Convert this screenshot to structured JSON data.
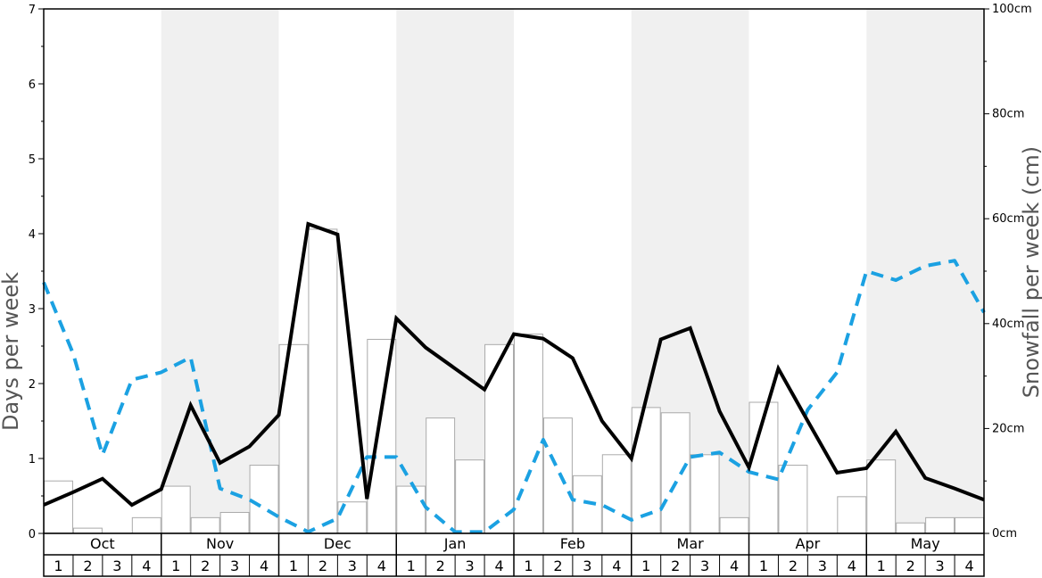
{
  "chart_data": {
    "type": "bar",
    "title": "",
    "y_left": {
      "label": "Days per week",
      "range": [
        0,
        7
      ],
      "ticks": [
        "0",
        "1",
        "2",
        "3",
        "4",
        "5",
        "6",
        "7"
      ]
    },
    "y_right": {
      "label": "Snowfall per week (cm)",
      "range": [
        0,
        100
      ],
      "ticks": [
        "0cm",
        "20cm",
        "40cm",
        "60cm",
        "80cm",
        "100cm"
      ]
    },
    "months": [
      "Oct",
      "Nov",
      "Dec",
      "Jan",
      "Feb",
      "Mar",
      "Apr",
      "May"
    ],
    "weeks": [
      "1",
      "2",
      "3",
      "4"
    ],
    "series": [
      {
        "kind": "bar",
        "axis": "right",
        "values": [
          10,
          1,
          0,
          3,
          9,
          3,
          4,
          13,
          36,
          58,
          6,
          37,
          9,
          22,
          14,
          36,
          38,
          22,
          11,
          15,
          24,
          23,
          15,
          3,
          25,
          13,
          0,
          7,
          14,
          2,
          3,
          3
        ]
      },
      {
        "kind": "line",
        "axis": "left",
        "values": [
          0.38,
          0.55,
          0.73,
          0.38,
          0.59,
          1.71,
          0.94,
          1.16,
          1.58,
          4.13,
          3.99,
          0.46,
          2.87,
          2.48,
          2.2,
          1.92,
          2.66,
          2.6,
          2.34,
          1.5,
          1.0,
          2.59,
          2.74,
          1.63,
          0.88,
          2.2,
          1.5,
          0.81,
          0.87,
          1.36,
          0.74,
          0.6,
          0.45
        ]
      },
      {
        "kind": "dashed-line",
        "axis": "left",
        "color": "#1ba1e2",
        "values": [
          3.35,
          2.4,
          1.05,
          2.05,
          2.15,
          2.35,
          0.6,
          0.45,
          0.22,
          0.02,
          0.2,
          1.02,
          1.02,
          0.35,
          0.02,
          0.02,
          0.32,
          1.25,
          0.45,
          0.38,
          0.18,
          0.32,
          1.02,
          1.08,
          0.82,
          0.72,
          1.65,
          2.15,
          3.5,
          3.38,
          3.57,
          3.64,
          2.95
        ]
      }
    ],
    "colors": {
      "bar_fill": "#ffffff",
      "bar_stroke": "#aaaaaa",
      "band_shade": "#f0f0f0",
      "line": "#000000",
      "dash": "#1ba1e2"
    },
    "grid": false,
    "legend": "none"
  }
}
